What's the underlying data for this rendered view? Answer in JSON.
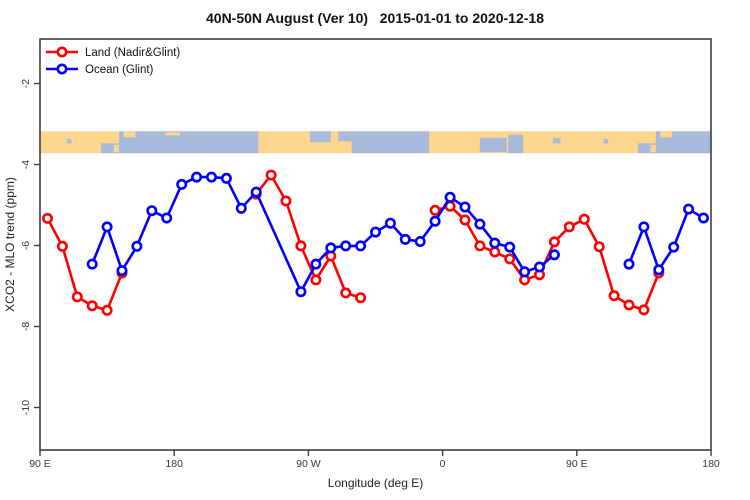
{
  "title": "40N-50N August (Ver 10)   2015-01-01 to 2020-12-18",
  "chart_data": {
    "type": "line",
    "title": "40N-50N August (Ver 10)   2015-01-01 to 2020-12-18",
    "xlabel": "Longitude (deg E)",
    "ylabel": "XCO2 - MLO trend (ppm)",
    "xlim": [
      90,
      540
    ],
    "ylim": [
      -11.05,
      -0.9
    ],
    "grid": false,
    "legend_position": "top-left",
    "x_ticks": [
      {
        "pos": 90,
        "label": "90 E"
      },
      {
        "pos": 180,
        "label": "180"
      },
      {
        "pos": 270,
        "label": "90 W"
      },
      {
        "pos": 360,
        "label": "0"
      },
      {
        "pos": 450,
        "label": "90 E"
      },
      {
        "pos": 540,
        "label": "180"
      }
    ],
    "y_ticks": [
      {
        "pos": -2,
        "label": "-2"
      },
      {
        "pos": -4,
        "label": "-4"
      },
      {
        "pos": -6,
        "label": "-6"
      },
      {
        "pos": -8,
        "label": "-8"
      },
      {
        "pos": -10,
        "label": "-10"
      }
    ],
    "series": [
      {
        "name": "Land (Nadir&Glint)",
        "color": "#ff0000",
        "marker": "open-circle",
        "segments": [
          [
            [
              95,
              -5.33
            ],
            [
              105,
              -6.02
            ],
            [
              115,
              -7.27
            ],
            [
              125,
              -7.49
            ],
            [
              135,
              -7.6
            ],
            [
              145,
              -6.68
            ]
          ],
          [
            [
              235,
              -4.73
            ],
            [
              245,
              -4.26
            ],
            [
              255,
              -4.9
            ],
            [
              265,
              -6.01
            ],
            [
              275,
              -6.85
            ],
            [
              285,
              -6.26
            ],
            [
              295,
              -7.17
            ],
            [
              305,
              -7.29
            ]
          ],
          [
            [
              355,
              -5.13
            ],
            [
              365,
              -5.03
            ],
            [
              375,
              -5.37
            ],
            [
              385,
              -6.01
            ],
            [
              395,
              -6.16
            ],
            [
              405,
              -6.33
            ],
            [
              415,
              -6.85
            ],
            [
              425,
              -6.72
            ],
            [
              435,
              -5.91
            ],
            [
              445,
              -5.54
            ],
            [
              455,
              -5.35
            ],
            [
              465,
              -6.03
            ],
            [
              475,
              -7.24
            ],
            [
              485,
              -7.47
            ],
            [
              495,
              -7.59
            ],
            [
              505,
              -6.68
            ]
          ]
        ]
      },
      {
        "name": "Ocean (Glint)",
        "color": "#0000ff",
        "marker": "open-circle",
        "segments": [
          [
            [
              125,
              -6.46
            ],
            [
              135,
              -5.54
            ],
            [
              145,
              -6.62
            ],
            [
              155,
              -6.02
            ],
            [
              165,
              -5.14
            ],
            [
              175,
              -5.32
            ],
            [
              185,
              -4.49
            ],
            [
              195,
              -4.31
            ],
            [
              205,
              -4.31
            ],
            [
              215,
              -4.34
            ],
            [
              225,
              -5.08
            ],
            [
              235,
              -4.68
            ],
            [
              265,
              -7.14
            ],
            [
              275,
              -6.46
            ],
            [
              285,
              -6.06
            ],
            [
              295,
              -6.01
            ],
            [
              305,
              -6.01
            ],
            [
              315,
              -5.67
            ],
            [
              325,
              -5.45
            ],
            [
              335,
              -5.85
            ],
            [
              345,
              -5.9
            ],
            [
              355,
              -5.4
            ],
            [
              365,
              -4.81
            ],
            [
              375,
              -5.05
            ],
            [
              385,
              -5.47
            ],
            [
              395,
              -5.94
            ],
            [
              405,
              -6.04
            ],
            [
              415,
              -6.65
            ],
            [
              425,
              -6.53
            ],
            [
              435,
              -6.23
            ]
          ],
          [
            [
              485,
              -6.46
            ],
            [
              495,
              -5.54
            ],
            [
              505,
              -6.6
            ],
            [
              515,
              -6.04
            ],
            [
              525,
              -5.1
            ],
            [
              535,
              -5.32
            ]
          ]
        ]
      }
    ],
    "surface_strip": {
      "description": "land-ocean map band across 40N-50N",
      "value_range": [
        -3.18,
        -3.72
      ],
      "land_color": "#fbd68c",
      "ocean_color": "#a7badb",
      "water_rects": [
        [
          143,
          236.5,
          0,
          1
        ],
        [
          299,
          351,
          0,
          1
        ],
        [
          503,
          540,
          0,
          1
        ],
        [
          131,
          143,
          0.55,
          1
        ],
        [
          491,
          503,
          0.55,
          1
        ],
        [
          271,
          285,
          0,
          0.5
        ],
        [
          290,
          299,
          0,
          0.45
        ],
        [
          385,
          403,
          0.3,
          0.95
        ],
        [
          404,
          414,
          0.15,
          1
        ],
        [
          434,
          439,
          0.3,
          0.55
        ],
        [
          108,
          111,
          0.35,
          0.55
        ],
        [
          468,
          471,
          0.35,
          0.55
        ]
      ],
      "island_rects": [
        [
          139.5,
          143,
          0.62,
          0.95
        ],
        [
          146,
          154,
          0,
          0.28
        ],
        [
          174,
          184,
          0.05,
          0.18
        ],
        [
          499.5,
          503,
          0.62,
          0.95
        ],
        [
          506,
          514,
          0,
          0.28
        ]
      ]
    }
  }
}
